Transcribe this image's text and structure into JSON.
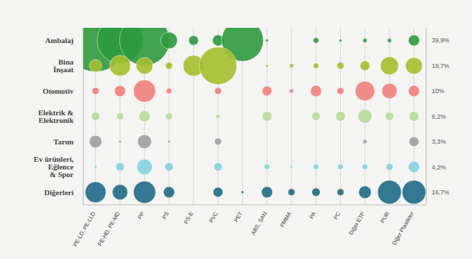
{
  "chart_data": {
    "type": "bubble",
    "grid": true,
    "tick_labels": true,
    "categories": [
      "PE-LD, PE-LLD",
      "PE-HD, PE-MD",
      "PP",
      "PS",
      "PS-E",
      "PVC",
      "PET",
      "ABS, SAN",
      "PMMA",
      "PA",
      "PC",
      "Diğer ETP",
      "PUR",
      "Diğer Plastikler"
    ],
    "size_range": [
      0,
      2025
    ],
    "series": [
      {
        "name": "Ambalaj",
        "color": "#2e9a3e",
        "share_label": "39,9%",
        "sizes": [
          2025,
          1089,
          1296,
          144,
          49,
          64,
          900,
          4,
          null,
          16,
          4,
          9,
          9,
          64
        ]
      },
      {
        "name": "Bina\nİnşaat",
        "color": "#a5bf2e",
        "share_label": "19,7%",
        "sizes": [
          81,
          225,
          144,
          25,
          225,
          729,
          null,
          4,
          9,
          16,
          25,
          49,
          169,
          144
        ]
      },
      {
        "name": "Otomotiv",
        "color": "#f0807a",
        "share_label": "10%",
        "sizes": [
          25,
          64,
          256,
          16,
          null,
          25,
          null,
          49,
          9,
          64,
          25,
          196,
          121,
          64
        ]
      },
      {
        "name": "Elektrik &\nElektronik",
        "color": "#b5db9a",
        "share_label": "6,2%",
        "sizes": [
          36,
          25,
          64,
          25,
          null,
          9,
          null,
          49,
          null,
          36,
          49,
          100,
          36,
          49
        ]
      },
      {
        "name": "Tarım",
        "color": "#9e9e9e",
        "share_label": "3,3%",
        "sizes": [
          81,
          4,
          100,
          4,
          null,
          25,
          null,
          null,
          null,
          null,
          null,
          9,
          null,
          49
        ]
      },
      {
        "name": "Ev ürünleri,\nEğlence\n& Spor",
        "color": "#84d3df",
        "share_label": "4,2%",
        "sizes": [
          4,
          36,
          121,
          36,
          null,
          36,
          null,
          16,
          4,
          16,
          16,
          16,
          25,
          64
        ]
      },
      {
        "name": "Diğerleri",
        "color": "#1f6a86",
        "share_label": "16,7%",
        "sizes": [
          225,
          121,
          256,
          64,
          null,
          49,
          4,
          64,
          25,
          36,
          25,
          81,
          289,
          289
        ]
      }
    ]
  }
}
